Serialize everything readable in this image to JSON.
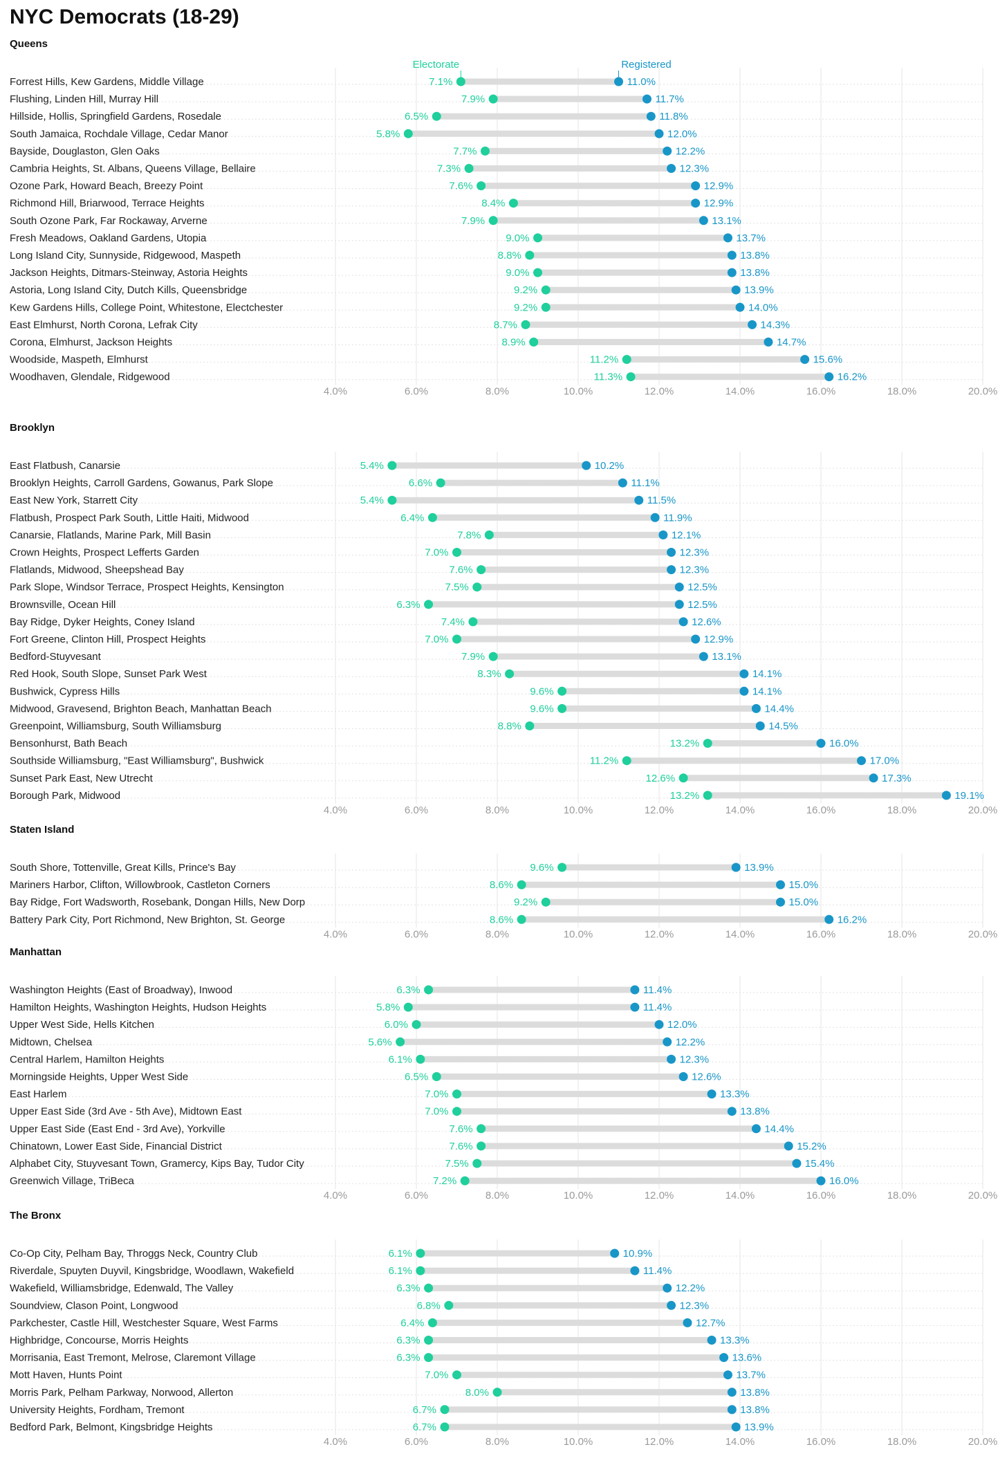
{
  "title": "NYC Democrats (18-29)",
  "chart_data": {
    "type": "dumbbell",
    "title": "NYC Democrats (18-29)",
    "legend": {
      "start": "Electorate",
      "end": "Registered",
      "placement": "top, above first panel"
    },
    "xlim": [
      4.0,
      20.0
    ],
    "xticks": [
      "4.0%",
      "6.0%",
      "8.0%",
      "10.0%",
      "12.0%",
      "14.0%",
      "16.0%",
      "18.0%",
      "20.0%"
    ],
    "grid": true,
    "colors": {
      "electorate": "#1fcf9c",
      "registered": "#1896c8",
      "bar": "#dcdcdc",
      "grid": "#e6e6e6",
      "tick_text": "#9a9a9a"
    },
    "panels": [
      {
        "name": "Queens",
        "rows": [
          {
            "label": "Forrest Hills, Kew Gardens, Middle Village",
            "electorate": 7.1,
            "registered": 11.0,
            "e_label": "7.1%",
            "r_label": "11.0%"
          },
          {
            "label": "Flushing, Linden Hill, Murray Hill",
            "electorate": 7.9,
            "registered": 11.7,
            "e_label": "7.9%",
            "r_label": "11.7%"
          },
          {
            "label": "Hillside, Hollis, Springfield Gardens, Rosedale",
            "electorate": 6.5,
            "registered": 11.8,
            "e_label": "6.5%",
            "r_label": "11.8%"
          },
          {
            "label": "South Jamaica, Rochdale Village, Cedar Manor",
            "electorate": 5.8,
            "registered": 12.0,
            "e_label": "5.8%",
            "r_label": "12.0%"
          },
          {
            "label": "Bayside, Douglaston, Glen Oaks",
            "electorate": 7.7,
            "registered": 12.2,
            "e_label": "7.7%",
            "r_label": "12.2%"
          },
          {
            "label": "Cambria Heights, St. Albans, Queens Village, Bellaire",
            "electorate": 7.3,
            "registered": 12.3,
            "e_label": "7.3%",
            "r_label": "12.3%"
          },
          {
            "label": "Ozone Park, Howard Beach, Breezy Point",
            "electorate": 7.6,
            "registered": 12.9,
            "e_label": "7.6%",
            "r_label": "12.9%"
          },
          {
            "label": "Richmond Hill, Briarwood, Terrace Heights",
            "electorate": 8.4,
            "registered": 12.9,
            "e_label": "8.4%",
            "r_label": "12.9%"
          },
          {
            "label": "South Ozone Park, Far Rockaway, Arverne",
            "electorate": 7.9,
            "registered": 13.1,
            "e_label": "7.9%",
            "r_label": "13.1%"
          },
          {
            "label": "Fresh Meadows, Oakland Gardens, Utopia",
            "electorate": 9.0,
            "registered": 13.7,
            "e_label": "9.0%",
            "r_label": "13.7%"
          },
          {
            "label": "Long Island City, Sunnyside, Ridgewood, Maspeth",
            "electorate": 8.8,
            "registered": 13.8,
            "e_label": "8.8%",
            "r_label": "13.8%"
          },
          {
            "label": "Jackson Heights, Ditmars-Steinway, Astoria Heights",
            "electorate": 9.0,
            "registered": 13.8,
            "e_label": "9.0%",
            "r_label": "13.8%"
          },
          {
            "label": "Astoria, Long Island City, Dutch Kills, Queensbridge",
            "electorate": 9.2,
            "registered": 13.9,
            "e_label": "9.2%",
            "r_label": "13.9%"
          },
          {
            "label": "Kew Gardens Hills, College Point, Whitestone, Electchester",
            "electorate": 9.2,
            "registered": 14.0,
            "e_label": "9.2%",
            "r_label": "14.0%"
          },
          {
            "label": "East Elmhurst, North Corona, Lefrak City",
            "electorate": 8.7,
            "registered": 14.3,
            "e_label": "8.7%",
            "r_label": "14.3%"
          },
          {
            "label": "Corona, Elmhurst, Jackson Heights",
            "electorate": 8.9,
            "registered": 14.7,
            "e_label": "8.9%",
            "r_label": "14.7%"
          },
          {
            "label": "Woodside, Maspeth, Elmhurst",
            "electorate": 11.2,
            "registered": 15.6,
            "e_label": "11.2%",
            "r_label": "15.6%"
          },
          {
            "label": "Woodhaven, Glendale, Ridgewood",
            "electorate": 11.3,
            "registered": 16.2,
            "e_label": "11.3%",
            "r_label": "16.2%"
          }
        ]
      },
      {
        "name": "Brooklyn",
        "rows": [
          {
            "label": "East Flatbush, Canarsie",
            "electorate": 5.4,
            "registered": 10.2,
            "e_label": "5.4%",
            "r_label": "10.2%"
          },
          {
            "label": "Brooklyn Heights, Carroll Gardens, Gowanus, Park Slope",
            "electorate": 6.6,
            "registered": 11.1,
            "e_label": "6.6%",
            "r_label": "11.1%"
          },
          {
            "label": "East New York, Starrett City",
            "electorate": 5.4,
            "registered": 11.5,
            "e_label": "5.4%",
            "r_label": "11.5%"
          },
          {
            "label": "Flatbush, Prospect Park South, Little Haiti, Midwood",
            "electorate": 6.4,
            "registered": 11.9,
            "e_label": "6.4%",
            "r_label": "11.9%"
          },
          {
            "label": "Canarsie, Flatlands, Marine Park, Mill Basin",
            "electorate": 7.8,
            "registered": 12.1,
            "e_label": "7.8%",
            "r_label": "12.1%"
          },
          {
            "label": "Crown Heights, Prospect Lefferts Garden",
            "electorate": 7.0,
            "registered": 12.3,
            "e_label": "7.0%",
            "r_label": "12.3%"
          },
          {
            "label": "Flatlands, Midwood, Sheepshead Bay",
            "electorate": 7.6,
            "registered": 12.3,
            "e_label": "7.6%",
            "r_label": "12.3%"
          },
          {
            "label": "Park Slope, Windsor Terrace, Prospect Heights, Kensington",
            "electorate": 7.5,
            "registered": 12.5,
            "e_label": "7.5%",
            "r_label": "12.5%"
          },
          {
            "label": "Brownsville, Ocean Hill",
            "electorate": 6.3,
            "registered": 12.5,
            "e_label": "6.3%",
            "r_label": "12.5%"
          },
          {
            "label": "Bay Ridge, Dyker Heights, Coney Island",
            "electorate": 7.4,
            "registered": 12.6,
            "e_label": "7.4%",
            "r_label": "12.6%"
          },
          {
            "label": "Fort Greene, Clinton Hill, Prospect Heights",
            "electorate": 7.0,
            "registered": 12.9,
            "e_label": "7.0%",
            "r_label": "12.9%"
          },
          {
            "label": "Bedford-Stuyvesant",
            "electorate": 7.9,
            "registered": 13.1,
            "e_label": "7.9%",
            "r_label": "13.1%"
          },
          {
            "label": "Red Hook, South Slope, Sunset Park West",
            "electorate": 8.3,
            "registered": 14.1,
            "e_label": "8.3%",
            "r_label": "14.1%"
          },
          {
            "label": "Bushwick, Cypress Hills",
            "electorate": 9.6,
            "registered": 14.1,
            "e_label": "9.6%",
            "r_label": "14.1%"
          },
          {
            "label": "Midwood, Gravesend, Brighton Beach, Manhattan Beach",
            "electorate": 9.6,
            "registered": 14.4,
            "e_label": "9.6%",
            "r_label": "14.4%"
          },
          {
            "label": "Greenpoint, Williamsburg, South Williamsburg",
            "electorate": 8.8,
            "registered": 14.5,
            "e_label": "8.8%",
            "r_label": "14.5%"
          },
          {
            "label": "Bensonhurst, Bath Beach",
            "electorate": 13.2,
            "registered": 16.0,
            "e_label": "13.2%",
            "r_label": "16.0%"
          },
          {
            "label": "Southside Williamsburg, \"East Williamsburg\", Bushwick",
            "electorate": 11.2,
            "registered": 17.0,
            "e_label": "11.2%",
            "r_label": "17.0%"
          },
          {
            "label": "Sunset Park East, New Utrecht",
            "electorate": 12.6,
            "registered": 17.3,
            "e_label": "12.6%",
            "r_label": "17.3%"
          },
          {
            "label": "Borough Park, Midwood",
            "electorate": 13.2,
            "registered": 19.1,
            "e_label": "13.2%",
            "r_label": "19.1%"
          }
        ]
      },
      {
        "name": "Staten Island",
        "rows": [
          {
            "label": "South Shore, Tottenville, Great Kills, Prince's Bay",
            "electorate": 9.6,
            "registered": 13.9,
            "e_label": "9.6%",
            "r_label": "13.9%"
          },
          {
            "label": "Mariners Harbor, Clifton, Willowbrook, Castleton Corners",
            "electorate": 8.6,
            "registered": 15.0,
            "e_label": "8.6%",
            "r_label": "15.0%"
          },
          {
            "label": "Bay Ridge, Fort Wadsworth, Rosebank, Dongan Hills, New Dorp",
            "electorate": 9.2,
            "registered": 15.0,
            "e_label": "9.2%",
            "r_label": "15.0%"
          },
          {
            "label": "Battery Park City, Port Richmond, New Brighton, St. George",
            "electorate": 8.6,
            "registered": 16.2,
            "e_label": "8.6%",
            "r_label": "16.2%"
          }
        ]
      },
      {
        "name": "Manhattan",
        "rows": [
          {
            "label": "Washington Heights (East of Broadway), Inwood",
            "electorate": 6.3,
            "registered": 11.4,
            "e_label": "6.3%",
            "r_label": "11.4%"
          },
          {
            "label": "Hamilton Heights, Washington Heights, Hudson Heights",
            "electorate": 5.8,
            "registered": 11.4,
            "e_label": "5.8%",
            "r_label": "11.4%"
          },
          {
            "label": "Upper West Side, Hells Kitchen",
            "electorate": 6.0,
            "registered": 12.0,
            "e_label": "6.0%",
            "r_label": "12.0%"
          },
          {
            "label": "Midtown, Chelsea",
            "electorate": 5.6,
            "registered": 12.2,
            "e_label": "5.6%",
            "r_label": "12.2%"
          },
          {
            "label": "Central Harlem, Hamilton Heights",
            "electorate": 6.1,
            "registered": 12.3,
            "e_label": "6.1%",
            "r_label": "12.3%"
          },
          {
            "label": "Morningside Heights, Upper West Side",
            "electorate": 6.5,
            "registered": 12.6,
            "e_label": "6.5%",
            "r_label": "12.6%"
          },
          {
            "label": "East Harlem",
            "electorate": 7.0,
            "registered": 13.3,
            "e_label": "7.0%",
            "r_label": "13.3%"
          },
          {
            "label": "Upper East Side (3rd Ave - 5th Ave), Midtown East",
            "electorate": 7.0,
            "registered": 13.8,
            "e_label": "7.0%",
            "r_label": "13.8%"
          },
          {
            "label": "Upper East Side (East End - 3rd Ave), Yorkville",
            "electorate": 7.6,
            "registered": 14.4,
            "e_label": "7.6%",
            "r_label": "14.4%"
          },
          {
            "label": "Chinatown, Lower East Side, Financial District",
            "electorate": 7.6,
            "registered": 15.2,
            "e_label": "7.6%",
            "r_label": "15.2%"
          },
          {
            "label": "Alphabet City, Stuyvesant Town, Gramercy, Kips Bay, Tudor City",
            "electorate": 7.5,
            "registered": 15.4,
            "e_label": "7.5%",
            "r_label": "15.4%"
          },
          {
            "label": "Greenwich Village, TriBeca",
            "electorate": 7.2,
            "registered": 16.0,
            "e_label": "7.2%",
            "r_label": "16.0%"
          }
        ]
      },
      {
        "name": "The Bronx",
        "rows": [
          {
            "label": "Co-Op City, Pelham Bay, Throggs Neck, Country Club",
            "electorate": 6.1,
            "registered": 10.9,
            "e_label": "6.1%",
            "r_label": "10.9%"
          },
          {
            "label": "Riverdale, Spuyten Duyvil, Kingsbridge, Woodlawn, Wakefield",
            "electorate": 6.1,
            "registered": 11.4,
            "e_label": "6.1%",
            "r_label": "11.4%"
          },
          {
            "label": "Wakefield, Williamsbridge, Edenwald, The Valley",
            "electorate": 6.3,
            "registered": 12.2,
            "e_label": "6.3%",
            "r_label": "12.2%"
          },
          {
            "label": "Soundview, Clason Point, Longwood",
            "electorate": 6.8,
            "registered": 12.3,
            "e_label": "6.8%",
            "r_label": "12.3%"
          },
          {
            "label": "Parkchester, Castle Hill, Westchester Square, West Farms",
            "electorate": 6.4,
            "registered": 12.7,
            "e_label": "6.4%",
            "r_label": "12.7%"
          },
          {
            "label": "Highbridge, Concourse, Morris Heights",
            "electorate": 6.3,
            "registered": 13.3,
            "e_label": "6.3%",
            "r_label": "13.3%"
          },
          {
            "label": "Morrisania, East Tremont, Melrose, Claremont Village",
            "electorate": 6.3,
            "registered": 13.6,
            "e_label": "6.3%",
            "r_label": "13.6%"
          },
          {
            "label": "Mott Haven, Hunts Point",
            "electorate": 7.0,
            "registered": 13.7,
            "e_label": "7.0%",
            "r_label": "13.7%"
          },
          {
            "label": "Morris Park, Pelham Parkway, Norwood, Allerton",
            "electorate": 8.0,
            "registered": 13.8,
            "e_label": "8.0%",
            "r_label": "13.8%"
          },
          {
            "label": "University Heights, Fordham, Tremont",
            "electorate": 6.7,
            "registered": 13.8,
            "e_label": "6.7%",
            "r_label": "13.8%"
          },
          {
            "label": "Bedford Park, Belmont, Kingsbridge Heights",
            "electorate": 6.7,
            "registered": 13.9,
            "e_label": "6.7%",
            "r_label": "13.9%"
          }
        ]
      }
    ]
  }
}
